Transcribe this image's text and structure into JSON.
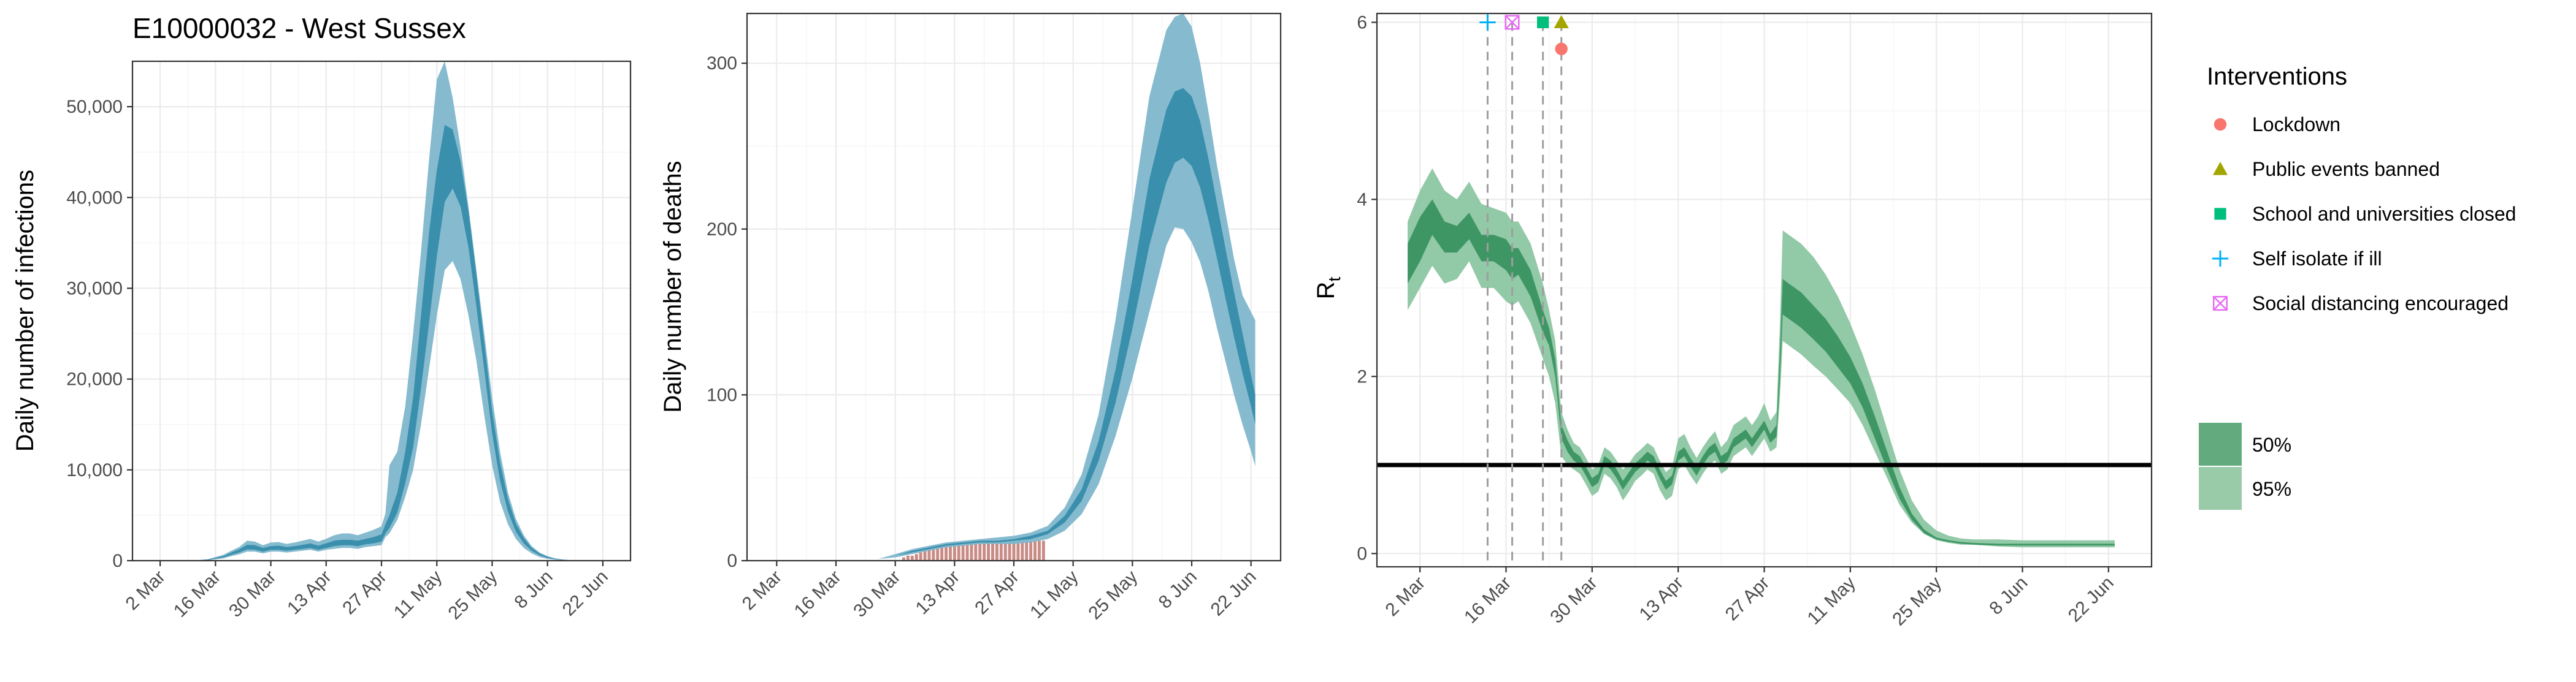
{
  "figure": {
    "title": "E10000032 - West Sussex"
  },
  "colors": {
    "infections_ci95": "#7fb7cc",
    "infections_ci50": "#3a8fad",
    "deaths_ci95": "#7fb7cc",
    "deaths_ci50": "#3a8fad",
    "observed_deaths": "#c98b86",
    "rt_ci95": "#8cc6a2",
    "rt_ci50": "#3f9665",
    "rt_reference_line": "#000000",
    "lockdown": "#f8766d",
    "public_events_banned": "#a3a500",
    "school_closed": "#00bf7d",
    "self_isolate": "#00b0f6",
    "social_distancing": "#e76bf3"
  },
  "legend": {
    "interventions_title": "Interventions",
    "interventions": [
      {
        "label": "Lockdown",
        "icon": "circle-icon",
        "color": "#f8766d"
      },
      {
        "label": "Public events banned",
        "icon": "triangle-icon",
        "color": "#a3a500"
      },
      {
        "label": "School and universities closed",
        "icon": "square-icon",
        "color": "#00bf7d"
      },
      {
        "label": "Self isolate if ill",
        "icon": "plus-icon",
        "color": "#00b0f6"
      },
      {
        "label": "Social distancing encouraged",
        "icon": "boxed-x-icon",
        "color": "#e76bf3"
      }
    ],
    "ci": [
      {
        "label": "50%",
        "color": "#63aa7e"
      },
      {
        "label": "95%",
        "color": "#99cba9"
      }
    ]
  },
  "chart_data": [
    {
      "type": "area",
      "name": "infections",
      "ylabel": "Daily number of infections",
      "xlabel": "",
      "x_ticks": [
        "2 Mar",
        "16 Mar",
        "30 Mar",
        "13 Apr",
        "27 Apr",
        "11 May",
        "25 May",
        "8 Jun",
        "22 Jun"
      ],
      "x_tick_days": [
        0,
        14,
        28,
        42,
        56,
        70,
        84,
        98,
        112
      ],
      "xlim_days": [
        -7,
        119
      ],
      "y_ticks": [
        "0",
        "10,000",
        "20,000",
        "30,000",
        "40,000",
        "50,000"
      ],
      "y_tick_values": [
        0,
        10000,
        20000,
        30000,
        40000,
        50000
      ],
      "ylim": [
        0,
        55000
      ],
      "grid": true,
      "x_days": [
        0,
        8,
        12,
        16,
        18,
        20,
        22,
        24,
        26,
        28,
        30,
        32,
        34,
        36,
        38,
        40,
        42,
        44,
        46,
        48,
        50,
        52,
        54,
        56,
        57,
        58,
        60,
        62,
        64,
        66,
        68,
        70,
        72,
        74,
        76,
        78,
        80,
        82,
        84,
        86,
        88,
        90,
        92,
        94,
        96,
        98,
        100,
        102,
        104,
        106,
        108,
        110,
        112,
        113
      ],
      "lower95": [
        0,
        0,
        50,
        250,
        500,
        700,
        1000,
        1000,
        800,
        1000,
        1000,
        900,
        1000,
        1100,
        1200,
        1000,
        1200,
        1300,
        1400,
        1400,
        1300,
        1500,
        1600,
        1700,
        2600,
        3000,
        4500,
        7000,
        10000,
        15000,
        21000,
        27000,
        32000,
        33000,
        31000,
        27000,
        22000,
        16000,
        10500,
        6500,
        4000,
        2400,
        1400,
        800,
        400,
        200,
        100,
        50,
        20,
        10,
        5,
        3,
        2,
        1
      ],
      "lower50": [
        0,
        0,
        70,
        350,
        650,
        900,
        1250,
        1200,
        1000,
        1200,
        1200,
        1100,
        1200,
        1300,
        1400,
        1200,
        1400,
        1600,
        1700,
        1700,
        1600,
        1800,
        1900,
        2100,
        3000,
        3600,
        5300,
        8500,
        12500,
        19000,
        26000,
        33500,
        39500,
        41000,
        39000,
        34500,
        28000,
        21000,
        14000,
        8800,
        5400,
        3200,
        1900,
        1100,
        600,
        300,
        150,
        70,
        30,
        15,
        8,
        4,
        2,
        1
      ],
      "upper50": [
        0,
        0,
        120,
        500,
        900,
        1250,
        1750,
        1700,
        1400,
        1600,
        1650,
        1500,
        1600,
        1750,
        1900,
        1650,
        1900,
        2200,
        2300,
        2300,
        2200,
        2400,
        2600,
        2900,
        4000,
        5000,
        7500,
        12000,
        18000,
        27000,
        36000,
        43000,
        48000,
        47500,
        44000,
        38500,
        31500,
        24000,
        16500,
        10800,
        6800,
        4100,
        2500,
        1400,
        800,
        420,
        200,
        100,
        50,
        25,
        12,
        6,
        3,
        2
      ],
      "upper95": [
        0,
        0,
        150,
        650,
        1100,
        1500,
        2200,
        2100,
        1700,
        2000,
        2050,
        1850,
        2000,
        2200,
        2400,
        2100,
        2400,
        2800,
        3000,
        3000,
        2800,
        3100,
        3400,
        3800,
        5200,
        10500,
        12000,
        17000,
        25000,
        34000,
        44000,
        53000,
        55000,
        51000,
        45500,
        39000,
        32000,
        25000,
        18000,
        12000,
        7500,
        4600,
        2800,
        1600,
        900,
        500,
        250,
        120,
        60,
        30,
        15,
        8,
        4,
        2
      ]
    },
    {
      "type": "area",
      "name": "deaths",
      "ylabel": "Daily number of deaths",
      "xlabel": "",
      "x_ticks": [
        "2 Mar",
        "16 Mar",
        "30 Mar",
        "13 Apr",
        "27 Apr",
        "11 May",
        "25 May",
        "8 Jun",
        "22 Jun"
      ],
      "x_tick_days": [
        0,
        14,
        28,
        42,
        56,
        70,
        84,
        98,
        112
      ],
      "xlim_days": [
        -7,
        119
      ],
      "y_ticks": [
        "0",
        "100",
        "200",
        "300"
      ],
      "y_tick_values": [
        0,
        100,
        200,
        300
      ],
      "ylim": [
        0,
        330
      ],
      "grid": true,
      "x_days": [
        0,
        14,
        20,
        24,
        28,
        32,
        36,
        40,
        44,
        48,
        52,
        56,
        60,
        64,
        68,
        72,
        76,
        80,
        84,
        88,
        92,
        94,
        96,
        98,
        100,
        102,
        104,
        106,
        108,
        110,
        112,
        113
      ],
      "lower95": [
        0,
        0,
        0,
        1,
        2,
        4,
        6,
        8,
        9,
        10,
        10,
        10,
        11,
        13,
        18,
        28,
        46,
        75,
        110,
        150,
        190,
        201,
        200,
        192,
        180,
        162,
        140,
        120,
        100,
        82,
        66,
        57
      ],
      "lower50": [
        0,
        0,
        0,
        1,
        3,
        5,
        7,
        9,
        10,
        11,
        11,
        12,
        13,
        16,
        23,
        36,
        60,
        95,
        140,
        190,
        228,
        240,
        243,
        238,
        225,
        205,
        182,
        158,
        135,
        113,
        93,
        82
      ],
      "upper50": [
        0,
        0,
        0,
        1,
        3,
        6,
        8,
        10,
        11,
        12,
        12,
        13,
        15,
        18,
        27,
        43,
        72,
        115,
        170,
        230,
        272,
        283,
        285,
        280,
        265,
        242,
        215,
        188,
        162,
        137,
        112,
        100
      ],
      "upper95": [
        0,
        0,
        0,
        1,
        4,
        7,
        9,
        11,
        12,
        13,
        14,
        15,
        17,
        21,
        32,
        52,
        88,
        145,
        212,
        280,
        320,
        328,
        330,
        322,
        300,
        270,
        238,
        210,
        182,
        160,
        150,
        145
      ],
      "observed_days": [
        30,
        31,
        32,
        33,
        34,
        35,
        36,
        37,
        38,
        39,
        40,
        41,
        42,
        43,
        44,
        45,
        46,
        47,
        48,
        49,
        50,
        51,
        52,
        53,
        54,
        55,
        56,
        57,
        58,
        59,
        60,
        61,
        62,
        63
      ],
      "observed_values": [
        2,
        3,
        3,
        4,
        5,
        6,
        7,
        7,
        8,
        9,
        9,
        10,
        10,
        11,
        11,
        11,
        11,
        12,
        12,
        12,
        12,
        12,
        12,
        12,
        12,
        12,
        12,
        12,
        12,
        12,
        12,
        12,
        12,
        12
      ]
    },
    {
      "type": "area",
      "name": "rt",
      "ylabel": "R",
      "ylabel_subscript": "t",
      "xlabel": "",
      "x_ticks": [
        "2 Mar",
        "16 Mar",
        "30 Mar",
        "13 Apr",
        "27 Apr",
        "11 May",
        "25 May",
        "8 Jun",
        "22 Jun"
      ],
      "x_tick_days": [
        0,
        14,
        28,
        42,
        56,
        70,
        84,
        98,
        112
      ],
      "xlim_days": [
        -7,
        119
      ],
      "y_ticks": [
        "0",
        "2",
        "4",
        "6"
      ],
      "y_tick_values": [
        0,
        2,
        4,
        6
      ],
      "ylim": [
        -0.15,
        6.1
      ],
      "grid": true,
      "reference_line": 1,
      "intervention_days": [
        11,
        15,
        20,
        23,
        23
      ],
      "intervention_markers": [
        {
          "label": "Self isolate if ill",
          "day": 11,
          "y": 6.0
        },
        {
          "label": "Social distancing encouraged",
          "day": 15,
          "y": 6.0
        },
        {
          "label": "School and universities closed",
          "day": 20,
          "y": 6.0
        },
        {
          "label": "Public events banned",
          "day": 23,
          "y": 6.0
        },
        {
          "label": "Lockdown",
          "day": 23,
          "y": 5.7
        }
      ],
      "x_days": [
        -2,
        0,
        2,
        4,
        6,
        8,
        10,
        12,
        14,
        15,
        16,
        18,
        20,
        21,
        22,
        23,
        24,
        25,
        26,
        27,
        28,
        29,
        30,
        31,
        32,
        33,
        34,
        35,
        36,
        37,
        38,
        39,
        40,
        41,
        42,
        43,
        44,
        45,
        46,
        47,
        48,
        49,
        50,
        51,
        52,
        53,
        54,
        55,
        56,
        57,
        58,
        58.5,
        59,
        60,
        62,
        64,
        66,
        68,
        70,
        72,
        74,
        76,
        78,
        80,
        82,
        84,
        86,
        88,
        90,
        94,
        98,
        102,
        106,
        110,
        113
      ],
      "lower95": [
        2.75,
        3.0,
        3.25,
        3.05,
        3.1,
        3.3,
        3.0,
        3.0,
        2.85,
        2.8,
        2.85,
        2.6,
        2.2,
        2.0,
        1.7,
        1.1,
        1.0,
        0.95,
        0.9,
        0.78,
        0.65,
        0.7,
        0.9,
        0.85,
        0.75,
        0.6,
        0.7,
        0.82,
        0.88,
        0.95,
        0.9,
        0.72,
        0.6,
        0.65,
        0.95,
        1.0,
        0.88,
        0.78,
        0.9,
        1.0,
        1.05,
        0.9,
        0.95,
        1.1,
        1.15,
        1.2,
        1.1,
        1.2,
        1.3,
        1.15,
        1.2,
        1.7,
        2.4,
        2.35,
        2.25,
        2.12,
        2.0,
        1.85,
        1.7,
        1.45,
        1.15,
        0.85,
        0.55,
        0.35,
        0.22,
        0.15,
        0.12,
        0.1,
        0.1,
        0.08,
        0.07,
        0.07,
        0.07,
        0.07,
        0.07
      ],
      "lower50": [
        3.05,
        3.3,
        3.6,
        3.4,
        3.4,
        3.55,
        3.3,
        3.3,
        3.2,
        3.1,
        3.15,
        2.9,
        2.5,
        2.35,
        2.0,
        1.3,
        1.15,
        1.05,
        1.0,
        0.88,
        0.75,
        0.8,
        1.0,
        0.95,
        0.85,
        0.72,
        0.82,
        0.92,
        0.98,
        1.05,
        1.0,
        0.85,
        0.72,
        0.78,
        1.05,
        1.1,
        0.98,
        0.88,
        1.0,
        1.1,
        1.15,
        1.0,
        1.05,
        1.2,
        1.25,
        1.3,
        1.2,
        1.3,
        1.4,
        1.25,
        1.32,
        1.9,
        2.7,
        2.65,
        2.55,
        2.42,
        2.28,
        2.1,
        1.92,
        1.65,
        1.3,
        0.95,
        0.62,
        0.38,
        0.23,
        0.16,
        0.13,
        0.11,
        0.1,
        0.09,
        0.09,
        0.09,
        0.09,
        0.09,
        0.09
      ],
      "upper50": [
        3.5,
        3.8,
        4.0,
        3.75,
        3.7,
        3.85,
        3.6,
        3.6,
        3.55,
        3.45,
        3.45,
        3.2,
        2.75,
        2.55,
        2.2,
        1.45,
        1.28,
        1.15,
        1.1,
        0.98,
        0.85,
        0.9,
        1.1,
        1.05,
        0.95,
        0.82,
        0.92,
        1.02,
        1.08,
        1.15,
        1.1,
        0.95,
        0.82,
        0.88,
        1.15,
        1.2,
        1.08,
        0.98,
        1.1,
        1.2,
        1.25,
        1.1,
        1.15,
        1.3,
        1.35,
        1.4,
        1.3,
        1.4,
        1.5,
        1.35,
        1.45,
        2.2,
        3.1,
        3.05,
        2.95,
        2.8,
        2.65,
        2.45,
        2.22,
        1.92,
        1.55,
        1.15,
        0.75,
        0.45,
        0.27,
        0.18,
        0.15,
        0.13,
        0.12,
        0.11,
        0.11,
        0.11,
        0.11,
        0.11,
        0.11
      ],
      "upper95": [
        3.75,
        4.1,
        4.35,
        4.1,
        4.0,
        4.2,
        3.95,
        3.9,
        3.85,
        3.75,
        3.75,
        3.5,
        3.05,
        2.75,
        2.4,
        1.6,
        1.4,
        1.25,
        1.2,
        1.08,
        0.95,
        1.0,
        1.2,
        1.15,
        1.05,
        0.95,
        1.02,
        1.12,
        1.18,
        1.25,
        1.2,
        1.05,
        0.92,
        0.98,
        1.3,
        1.35,
        1.2,
        1.08,
        1.2,
        1.3,
        1.38,
        1.2,
        1.28,
        1.45,
        1.5,
        1.55,
        1.45,
        1.55,
        1.7,
        1.5,
        1.6,
        2.5,
        3.65,
        3.6,
        3.5,
        3.35,
        3.15,
        2.9,
        2.6,
        2.25,
        1.85,
        1.4,
        0.95,
        0.6,
        0.38,
        0.26,
        0.2,
        0.17,
        0.16,
        0.16,
        0.15,
        0.15,
        0.15,
        0.15,
        0.15
      ]
    }
  ]
}
